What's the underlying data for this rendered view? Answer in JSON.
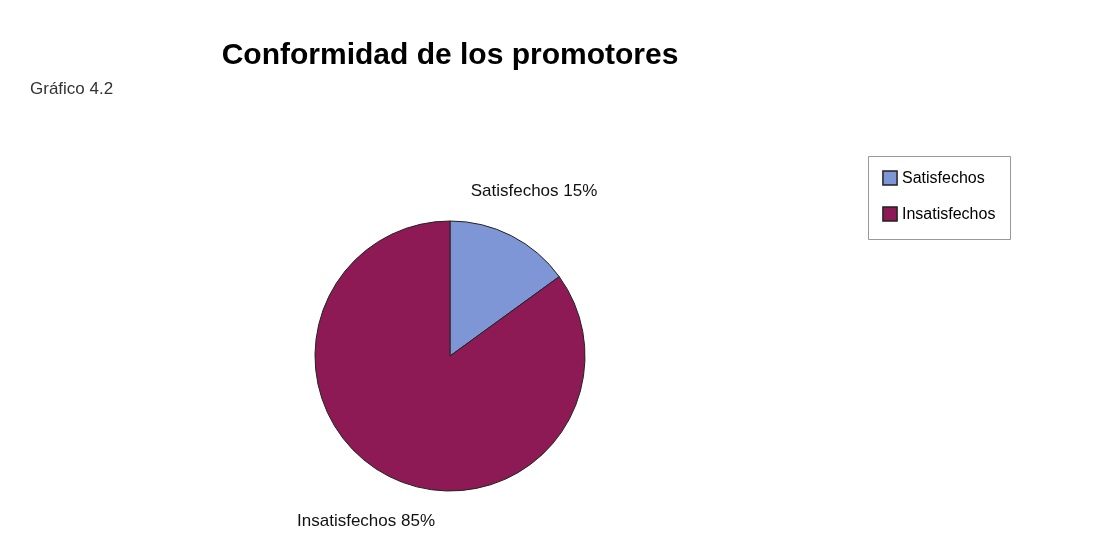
{
  "chart_data": {
    "type": "pie",
    "title": "Conformidad de los promotores",
    "categories": [
      "Satisfechos",
      "Insatisfechos"
    ],
    "values": [
      15,
      85
    ],
    "colors": [
      "#7f96d6",
      "#8e1a55"
    ],
    "value_labels": [
      "Satisfechos 15%",
      "Insatisfechos 85%"
    ],
    "legend": "right",
    "annotations": [
      "Gráfico 4.2"
    ]
  }
}
